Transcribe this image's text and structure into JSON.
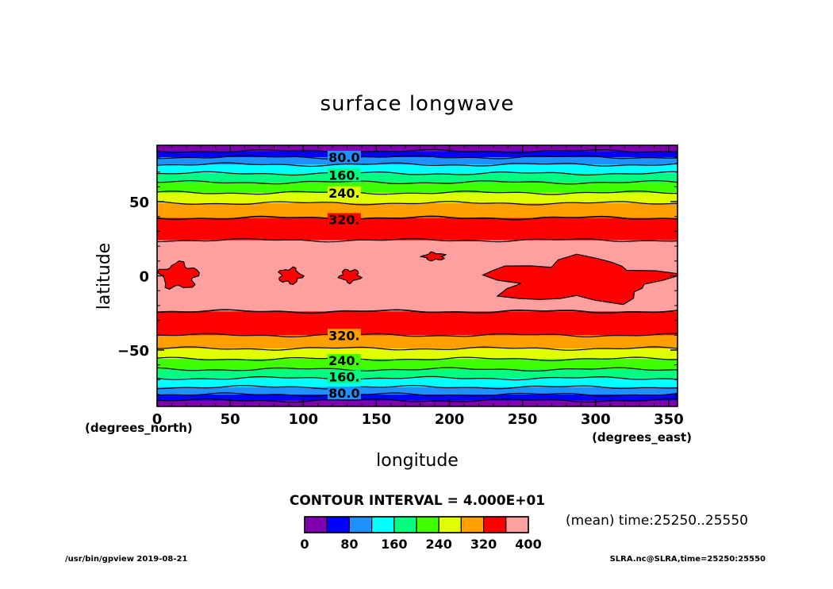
{
  "chart_data": {
    "type": "heatmap",
    "title": "surface longwave",
    "xlabel": "longitude",
    "ylabel": "latitude",
    "x_unit": "(degrees_east)",
    "y_unit": "(degrees_north)",
    "xlim": [
      0,
      356
    ],
    "ylim": [
      -88,
      88
    ],
    "x_ticks": [
      0,
      50,
      100,
      150,
      200,
      250,
      300,
      350
    ],
    "y_ticks": [
      {
        "value": 50,
        "label": "50"
      },
      {
        "value": 0,
        "label": "0"
      },
      {
        "value": -50,
        "label": "−50"
      }
    ],
    "contour_interval_text": "CONTOUR INTERVAL = 4.000E+01",
    "levels": [
      0,
      40,
      80,
      120,
      160,
      200,
      240,
      280,
      320,
      360,
      400
    ],
    "colorbar_labels": [
      {
        "value": 0,
        "label": "0"
      },
      {
        "value": 80,
        "label": "80"
      },
      {
        "value": 160,
        "label": "160"
      },
      {
        "value": 240,
        "label": "240"
      },
      {
        "value": 320,
        "label": "320"
      },
      {
        "value": 400,
        "label": "400"
      }
    ],
    "colors": [
      "#8000b0",
      "#0000ff",
      "#1e90ff",
      "#00ffff",
      "#00ff80",
      "#40ff00",
      "#e0ff00",
      "#ffa000",
      "#ff0000",
      "#ffa0a0"
    ],
    "contour_labels": [
      {
        "lat": 80,
        "label": "80.0"
      },
      {
        "lat": 68,
        "label": "160."
      },
      {
        "lat": 56,
        "label": "240."
      },
      {
        "lat": 38,
        "label": "320."
      },
      {
        "lat": -40,
        "label": "320."
      },
      {
        "lat": -57,
        "label": "240."
      },
      {
        "lat": -68,
        "label": "160."
      },
      {
        "lat": -79,
        "label": "80.0"
      }
    ],
    "zonal_bands_north_to_south": [
      {
        "lat_top": 88,
        "lat_bottom": 84,
        "level_index": 0
      },
      {
        "lat_top": 84,
        "lat_bottom": 80,
        "level_index": 1
      },
      {
        "lat_top": 80,
        "lat_bottom": 75,
        "level_index": 2
      },
      {
        "lat_top": 75,
        "lat_bottom": 69,
        "level_index": 3
      },
      {
        "lat_top": 69,
        "lat_bottom": 63,
        "level_index": 4
      },
      {
        "lat_top": 63,
        "lat_bottom": 56,
        "level_index": 5
      },
      {
        "lat_top": 56,
        "lat_bottom": 49,
        "level_index": 6
      },
      {
        "lat_top": 49,
        "lat_bottom": 39,
        "level_index": 7
      },
      {
        "lat_top": 39,
        "lat_bottom": 24,
        "level_index": 8
      },
      {
        "lat_top": 24,
        "lat_bottom": -24,
        "level_index": 9
      },
      {
        "lat_top": -24,
        "lat_bottom": -40,
        "level_index": 8
      },
      {
        "lat_top": -40,
        "lat_bottom": -49,
        "level_index": 7
      },
      {
        "lat_top": -49,
        "lat_bottom": -56,
        "level_index": 6
      },
      {
        "lat_top": -56,
        "lat_bottom": -63,
        "level_index": 5
      },
      {
        "lat_top": -63,
        "lat_bottom": -69,
        "level_index": 4
      },
      {
        "lat_top": -69,
        "lat_bottom": -75,
        "level_index": 3
      },
      {
        "lat_top": -75,
        "lat_bottom": -80,
        "level_index": 2
      },
      {
        "lat_top": -80,
        "lat_bottom": -84,
        "level_index": 1
      },
      {
        "lat_top": -84,
        "lat_bottom": -88,
        "level_index": 0
      }
    ],
    "tropical_red_regions": [
      {
        "lon": [
          0,
          30
        ],
        "lat": [
          -10,
          10
        ]
      },
      {
        "lon": [
          82,
          100
        ],
        "lat": [
          -6,
          6
        ]
      },
      {
        "lon": [
          124,
          140
        ],
        "lat": [
          -5,
          5
        ]
      },
      {
        "lon": [
          181,
          198
        ],
        "lat": [
          10,
          16
        ]
      },
      {
        "lon": [
          218,
          356
        ],
        "lat": [
          -20,
          14
        ]
      }
    ]
  },
  "info": {
    "mean_time": "(mean) time:25250..25550",
    "footer_left": "/usr/bin/gpview   2019-08-21",
    "footer_right": "SLRA.nc@SLRA,time=25250:25550"
  }
}
